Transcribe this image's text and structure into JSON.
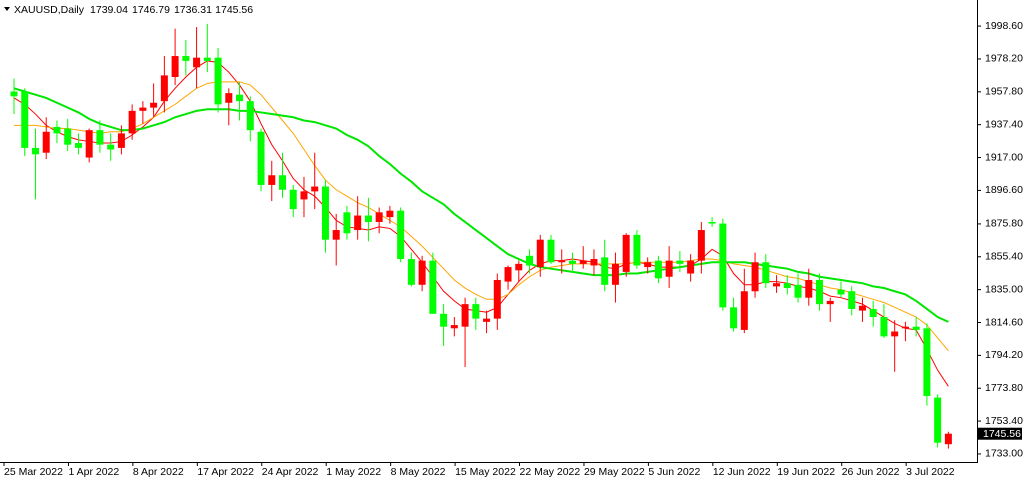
{
  "chart_data": {
    "type": "candlestick",
    "title": "XAUUSD,Daily",
    "categories": [
      "25 Mar 2022",
      null,
      null,
      null,
      null,
      null,
      "1 Apr 2022",
      null,
      null,
      null,
      null,
      null,
      "8 Apr 2022",
      null,
      null,
      null,
      null,
      null,
      "17 Apr 2022",
      null,
      null,
      null,
      null,
      null,
      "24 Apr 2022",
      null,
      null,
      null,
      null,
      null,
      "1 May 2022",
      null,
      null,
      null,
      null,
      null,
      "8 May 2022",
      null,
      null,
      null,
      null,
      null,
      "15 May 2022",
      null,
      null,
      null,
      null,
      null,
      "22 May 2022",
      null,
      null,
      null,
      null,
      null,
      "29 May 2022",
      null,
      null,
      null,
      null,
      null,
      "5 Jun 2022",
      null,
      null,
      null,
      null,
      null,
      "12 Jun 2022",
      null,
      null,
      null,
      null,
      null,
      "19 Jun 2022",
      null,
      null,
      null,
      null,
      null,
      "26 Jun 2022",
      null,
      null,
      null,
      null,
      null,
      "3 Jul 2022",
      null,
      null,
      null
    ],
    "open": [
      1958,
      1958,
      1923,
      1920,
      1936,
      1935,
      1926,
      1917,
      1934,
      1925,
      1923,
      1932,
      1946,
      1948,
      1952,
      1967,
      1980,
      1973,
      1979,
      1979,
      1951,
      1956,
      1952,
      1933,
      1900,
      1906,
      1897,
      1891,
      1896,
      1899,
      1866,
      1883,
      1872,
      1881,
      1877,
      1880,
      1884,
      1854,
      1838,
      1853,
      1820,
      1811,
      1812,
      1826,
      1815,
      1817,
      1840,
      1847,
      1856,
      1849,
      1866,
      1852,
      1853,
      1851,
      1850,
      1855,
      1838,
      1846,
      1869,
      1849,
      1853,
      1843,
      1853,
      1845,
      1853,
      1877,
      1876,
      1824,
      1810,
      1834,
      1852,
      1837,
      1839,
      1838,
      1830,
      1841,
      1826,
      1835,
      1834,
      1822,
      1823,
      1818,
      1806,
      1811,
      1812,
      1811,
      1768,
      1739.04
    ],
    "high": [
      1966,
      1960,
      1935,
      1942,
      1940,
      1941,
      1932,
      1935,
      1940,
      1932,
      1937,
      1950,
      1952,
      1963,
      1980,
      1997,
      1990,
      1998,
      2000,
      1985,
      1960,
      1964,
      1955,
      1935,
      1915,
      1920,
      1900,
      1905,
      1920,
      1903,
      1882,
      1887,
      1893,
      1892,
      1886,
      1887,
      1886,
      1858,
      1856,
      1858,
      1826,
      1818,
      1830,
      1830,
      1822,
      1845,
      1850,
      1853,
      1860,
      1869,
      1869,
      1860,
      1858,
      1862,
      1860,
      1866,
      1858,
      1870,
      1872,
      1855,
      1856,
      1862,
      1859,
      1857,
      1877,
      1880,
      1879,
      1830,
      1848,
      1858,
      1857,
      1844,
      1844,
      1845,
      1848,
      1845,
      1830,
      1840,
      1837,
      1830,
      1828,
      1826,
      1816,
      1815,
      1818,
      1814,
      1770,
      1746.79
    ],
    "low": [
      1944,
      1918,
      1891,
      1916,
      1926,
      1921,
      1919,
      1914,
      1920,
      1915,
      1919,
      1928,
      1938,
      1942,
      1945,
      1962,
      1968,
      1960,
      1970,
      1945,
      1937,
      1940,
      1927,
      1896,
      1890,
      1892,
      1880,
      1880,
      1885,
      1858,
      1850,
      1866,
      1866,
      1865,
      1870,
      1876,
      1852,
      1837,
      1834,
      1820,
      1800,
      1806,
      1787,
      1810,
      1808,
      1810,
      1835,
      1840,
      1845,
      1843,
      1851,
      1845,
      1846,
      1848,
      1844,
      1834,
      1827,
      1843,
      1848,
      1845,
      1839,
      1836,
      1846,
      1840,
      1845,
      1874,
      1822,
      1809,
      1808,
      1830,
      1836,
      1833,
      1832,
      1827,
      1825,
      1822,
      1815,
      1830,
      1819,
      1815,
      1812,
      1805,
      1784,
      1803,
      1806,
      1763,
      1737,
      1736.31
    ],
    "close": [
      1955,
      1923,
      1919,
      1933,
      1932,
      1925,
      1923,
      1934,
      1925,
      1922,
      1932,
      1946,
      1948,
      1951,
      1968,
      1980,
      1977,
      1979,
      1977,
      1950,
      1957,
      1952,
      1934,
      1900,
      1906,
      1897,
      1885,
      1896,
      1899,
      1866,
      1872,
      1870,
      1881,
      1877,
      1883,
      1884,
      1854,
      1838,
      1853,
      1820,
      1812,
      1813,
      1826,
      1817,
      1817,
      1841,
      1849,
      1851,
      1850,
      1866,
      1852,
      1853,
      1851,
      1853,
      1854,
      1838,
      1851,
      1869,
      1850,
      1852,
      1842,
      1853,
      1851,
      1853,
      1872,
      1876,
      1824,
      1811,
      1834,
      1852,
      1839,
      1839,
      1836,
      1830,
      1841,
      1826,
      1828,
      1832,
      1823,
      1825,
      1818,
      1806,
      1809,
      1812,
      1810,
      1769,
      1740,
      1745.56
    ],
    "up_color": "#ff0000",
    "down_color": "#00ff00",
    "lines": [
      {
        "color": "#ff0000",
        "values": [
          1954,
          1950,
          1944,
          1937,
          1933,
          1930,
          1928,
          1927,
          1926,
          1926,
          1927,
          1931,
          1936,
          1942,
          1952,
          1960,
          1967,
          1973,
          1977,
          1976,
          1970,
          1962,
          1952,
          1938,
          1925,
          1915,
          1904,
          1897,
          1893,
          1886,
          1878,
          1874,
          1873,
          1872,
          1874,
          1873,
          1868,
          1860,
          1852,
          1843,
          1834,
          1828,
          1823,
          1822,
          1821,
          1824,
          1832,
          1840,
          1847,
          1851,
          1853,
          1853,
          1854,
          1853,
          1852,
          1849,
          1848,
          1851,
          1852,
          1851,
          1849,
          1849,
          1849,
          1850,
          1854,
          1860,
          1856,
          1845,
          1838,
          1838,
          1840,
          1840,
          1839,
          1837,
          1836,
          1834,
          1831,
          1830,
          1828,
          1826,
          1822,
          1818,
          1814,
          1811,
          1810,
          1798,
          1785,
          1775
        ]
      },
      {
        "color": "#ffa500",
        "values": [
          1937,
          1937,
          1937,
          1936,
          1935,
          1935,
          1934,
          1933,
          1932,
          1933,
          1933,
          1935,
          1938,
          1942,
          1946,
          1950,
          1955,
          1960,
          1963,
          1964,
          1964,
          1964,
          1962,
          1956,
          1948,
          1940,
          1932,
          1922,
          1912,
          1903,
          1897,
          1893,
          1889,
          1886,
          1882,
          1878,
          1874,
          1868,
          1862,
          1855,
          1848,
          1841,
          1836,
          1832,
          1829,
          1829,
          1832,
          1838,
          1843,
          1847,
          1849,
          1850,
          1851,
          1851,
          1851,
          1851,
          1851,
          1851,
          1852,
          1852,
          1852,
          1852,
          1852,
          1853,
          1854,
          1854,
          1853,
          1851,
          1850,
          1849,
          1847,
          1845,
          1843,
          1842,
          1840,
          1838,
          1836,
          1835,
          1833,
          1831,
          1829,
          1827,
          1824,
          1821,
          1818,
          1813,
          1805,
          1797
        ]
      },
      {
        "color": "#00e600",
        "values": [
          1960,
          1958,
          1956,
          1954,
          1951,
          1948,
          1945,
          1941,
          1938,
          1936,
          1934,
          1934,
          1935,
          1937,
          1939,
          1942,
          1944,
          1946,
          1947,
          1947,
          1947,
          1946,
          1946,
          1945,
          1944,
          1943,
          1942,
          1940,
          1939,
          1937,
          1935,
          1931,
          1928,
          1924,
          1918,
          1913,
          1907,
          1902,
          1896,
          1892,
          1888,
          1882,
          1877,
          1872,
          1867,
          1862,
          1857,
          1854,
          1851,
          1849,
          1848,
          1847,
          1846,
          1845,
          1844,
          1844,
          1844,
          1845,
          1845,
          1846,
          1847,
          1848,
          1849,
          1850,
          1851,
          1852,
          1852,
          1852,
          1852,
          1851,
          1850,
          1849,
          1848,
          1846,
          1845,
          1843,
          1842,
          1841,
          1840,
          1839,
          1837,
          1836,
          1834,
          1832,
          1828,
          1823,
          1818,
          1815
        ]
      }
    ],
    "ylim": [
      1728,
      2014.8
    ],
    "yticks": [
      {
        "value": 1998.6,
        "label": "1998.60"
      },
      {
        "value": 1978.2,
        "label": "1978.20"
      },
      {
        "value": 1957.8,
        "label": "1957.80"
      },
      {
        "value": 1937.4,
        "label": "1937.40"
      },
      {
        "value": 1917,
        "label": "1917.00"
      },
      {
        "value": 1896.6,
        "label": "1896.60"
      },
      {
        "value": 1875.8,
        "label": "1875.80"
      },
      {
        "value": 1855.4,
        "label": "1855.40"
      },
      {
        "value": 1835,
        "label": "1835.00"
      },
      {
        "value": 1814.6,
        "label": "1814.60"
      },
      {
        "value": 1794.2,
        "label": "1794.20"
      },
      {
        "value": 1773.8,
        "label": "1773.80"
      },
      {
        "value": 1753.4,
        "label": "1753.40"
      },
      {
        "value": 1733,
        "label": "1733.00"
      }
    ]
  }
}
